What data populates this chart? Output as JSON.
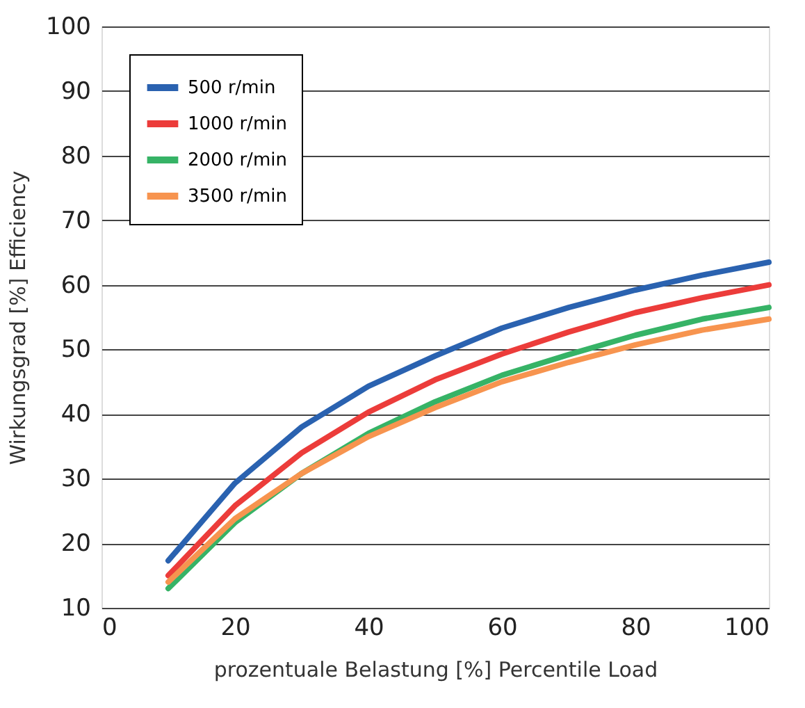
{
  "chart_data": {
    "type": "line",
    "x": [
      10,
      20,
      30,
      40,
      50,
      60,
      70,
      80,
      90,
      100
    ],
    "xlabel": "prozentuale Belastung   [%]   Percentile Load",
    "ylabel": "Wirkungsgrad   [%]   Efficiency",
    "series": [
      {
        "name": "500 r/min",
        "color": "#2a62b0",
        "values": [
          17.3,
          29.3,
          38,
          44.3,
          49,
          53.3,
          56.5,
          59.2,
          61.5,
          63.5
        ]
      },
      {
        "name": "1000 r/min",
        "color": "#ec3c3a",
        "values": [
          15,
          25.8,
          34,
          40.3,
          45.3,
          49.3,
          52.7,
          55.7,
          58,
          60
        ]
      },
      {
        "name": "2000 r/min",
        "color": "#36b366",
        "values": [
          13,
          23.2,
          30.8,
          37,
          41.9,
          46,
          49.2,
          52.2,
          54.7,
          56.5
        ]
      },
      {
        "name": "3500 r/min",
        "color": "#f7944f",
        "values": [
          14,
          23.8,
          30.8,
          36.5,
          41,
          45,
          48,
          50.7,
          53,
          54.7
        ]
      }
    ],
    "xlim": [
      0,
      100
    ],
    "xticks": [
      0,
      20,
      40,
      60,
      80,
      100
    ],
    "ylim": [
      10,
      100
    ],
    "yticks": [
      10,
      20,
      30,
      40,
      50,
      60,
      70,
      80,
      90,
      100
    ],
    "grid": "y",
    "legend": "top left",
    "marker": "none",
    "line_style": "solid"
  }
}
